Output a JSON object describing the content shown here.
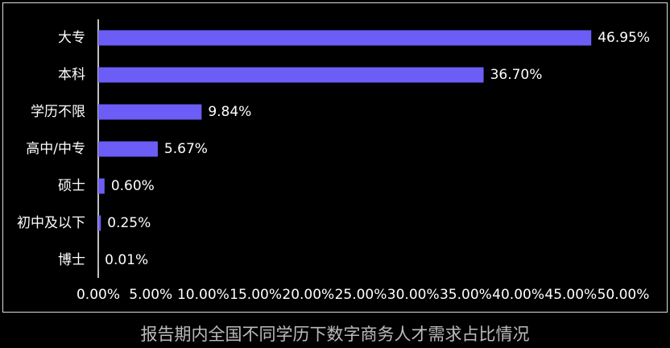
{
  "chart_data": {
    "type": "hbar",
    "title": "报告期内全国不同学历下数字商务人才需求占比情况",
    "categories": [
      "大专",
      "本科",
      "学历不限",
      "高中/中专",
      "硕士",
      "初中及以下",
      "博士"
    ],
    "values": [
      46.95,
      36.7,
      9.84,
      5.67,
      0.6,
      0.25,
      0.01
    ],
    "value_labels": [
      "46.95%",
      "36.70%",
      "9.84%",
      "5.67%",
      "0.60%",
      "0.25%",
      "0.01%"
    ],
    "color": "#6b5df5",
    "xlim": [
      0,
      50
    ],
    "xticks": [
      {
        "value": 0,
        "label": "0.00%"
      },
      {
        "value": 5,
        "label": "5.00%"
      },
      {
        "value": 10,
        "label": "10.00%"
      },
      {
        "value": 15,
        "label": "15.00%"
      },
      {
        "value": 20,
        "label": "20.00%"
      },
      {
        "value": 25,
        "label": "25.00%"
      },
      {
        "value": 30,
        "label": "30.00%"
      },
      {
        "value": 35,
        "label": "35.00%"
      },
      {
        "value": 40,
        "label": "40.00%"
      },
      {
        "value": 45,
        "label": "45.00%"
      },
      {
        "value": 50,
        "label": "50.00%"
      }
    ],
    "grid": false
  }
}
